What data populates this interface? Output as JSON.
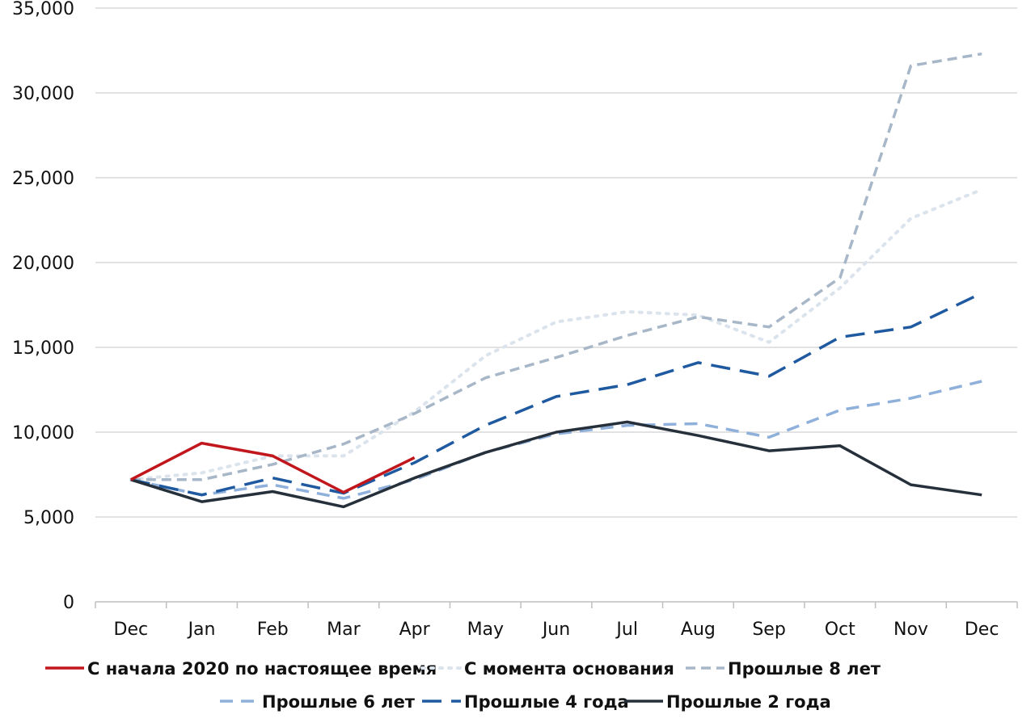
{
  "chart_data": {
    "type": "line",
    "title": "",
    "xlabel": "",
    "ylabel": "",
    "ylim": [
      0,
      35000
    ],
    "y_ticks": [
      0,
      5000,
      10000,
      15000,
      20000,
      25000,
      30000,
      35000
    ],
    "y_tick_labels": [
      "0",
      "5,000",
      "10,000",
      "15,000",
      "20,000",
      "25,000",
      "30,000",
      "35,000"
    ],
    "grid": "horizontal",
    "legend_position": "bottom",
    "categories": [
      "Dec",
      "Jan",
      "Feb",
      "Mar",
      "Apr",
      "May",
      "Jun",
      "Jul",
      "Aug",
      "Sep",
      "Oct",
      "Nov",
      "Dec"
    ],
    "series": [
      {
        "name": "С начала 2020 по настоящее время",
        "color": "#c0161c",
        "style": "solid",
        "values": [
          7200,
          9350,
          8600,
          6450,
          8500,
          null,
          null,
          null,
          null,
          null,
          null,
          null,
          null
        ]
      },
      {
        "name": "С момента основания",
        "color": "#dbe3ec",
        "style": "dotted",
        "values": [
          7200,
          7600,
          8600,
          8600,
          11200,
          14500,
          16500,
          17100,
          16900,
          15300,
          18500,
          22600,
          24300
        ]
      },
      {
        "name": "Прошлые 8 лет",
        "color": "#a7b7c8",
        "style": "dashed-short",
        "values": [
          7200,
          7200,
          8100,
          9300,
          11100,
          13200,
          14400,
          15700,
          16800,
          16200,
          19100,
          31600,
          32300
        ]
      },
      {
        "name": "Прошлые 6 лет",
        "color": "#8eb0db",
        "style": "dashed",
        "values": [
          7200,
          6300,
          6900,
          6100,
          7200,
          8800,
          9900,
          10400,
          10500,
          9700,
          11300,
          12000,
          13000
        ]
      },
      {
        "name": "Прошлые 4 года",
        "color": "#1f5aa0",
        "style": "dashed-long",
        "values": [
          7200,
          6300,
          7300,
          6400,
          8200,
          10400,
          12100,
          12800,
          14100,
          13300,
          15600,
          16200,
          18200
        ]
      },
      {
        "name": "Прошлые 2 года",
        "color": "#26303b",
        "style": "solid",
        "values": [
          7200,
          5900,
          6500,
          5600,
          7300,
          8800,
          10000,
          10600,
          9800,
          8900,
          9200,
          6900,
          6300
        ]
      }
    ]
  }
}
